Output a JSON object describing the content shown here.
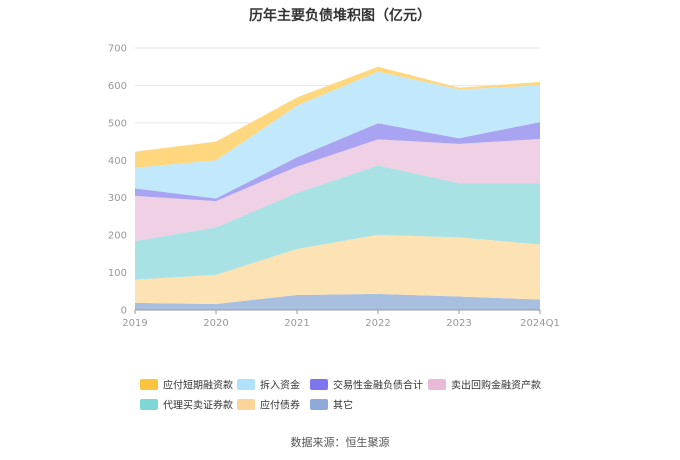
{
  "chart_data": {
    "type": "area",
    "stacked": true,
    "title": "历年主要负债堆积图（亿元）",
    "categories": [
      "2019",
      "2020",
      "2021",
      "2022",
      "2023",
      "2024Q1"
    ],
    "ylim": [
      0,
      700
    ],
    "yticks": [
      0,
      100,
      200,
      300,
      400,
      500,
      600,
      700
    ],
    "grid": true,
    "legend_position": "bottom",
    "series": [
      {
        "name": "其它",
        "color": "#a9bfe0",
        "values": [
          19,
          16,
          40,
          43,
          36,
          28
        ]
      },
      {
        "name": "应付债券",
        "color": "#fde3b4",
        "values": [
          62,
          78,
          123,
          158,
          158,
          147
        ]
      },
      {
        "name": "代理买卖证券款",
        "color": "#a9e2e4",
        "values": [
          103,
          127,
          150,
          185,
          145,
          164
        ]
      },
      {
        "name": "卖出回购金融资产款",
        "color": "#f0d0e4",
        "values": [
          121,
          70,
          70,
          70,
          105,
          118
        ]
      },
      {
        "name": "交易性金融负债合计",
        "color": "#a8a4f2",
        "values": [
          20,
          7,
          25,
          43,
          15,
          45
        ]
      },
      {
        "name": "拆入资金",
        "color": "#c2e8fb",
        "values": [
          55,
          102,
          138,
          138,
          130,
          98
        ]
      },
      {
        "name": "应付短期融资款",
        "color": "#ffd77e",
        "values": [
          43,
          50,
          22,
          13,
          5,
          9
        ]
      }
    ],
    "legend": [
      {
        "name": "应付短期融资款",
        "color": "#fbc43c"
      },
      {
        "name": "拆入资金",
        "color": "#aee3fb"
      },
      {
        "name": "交易性金融负债合计",
        "color": "#7d76ee"
      },
      {
        "name": "卖出回购金融资产款",
        "color": "#eab9d8"
      },
      {
        "name": "代理买卖证券款",
        "color": "#7fd6d6"
      },
      {
        "name": "应付债券",
        "color": "#fcd49a"
      },
      {
        "name": "其它",
        "color": "#8fa9d8"
      }
    ]
  },
  "source": "数据来源：恒生聚源"
}
